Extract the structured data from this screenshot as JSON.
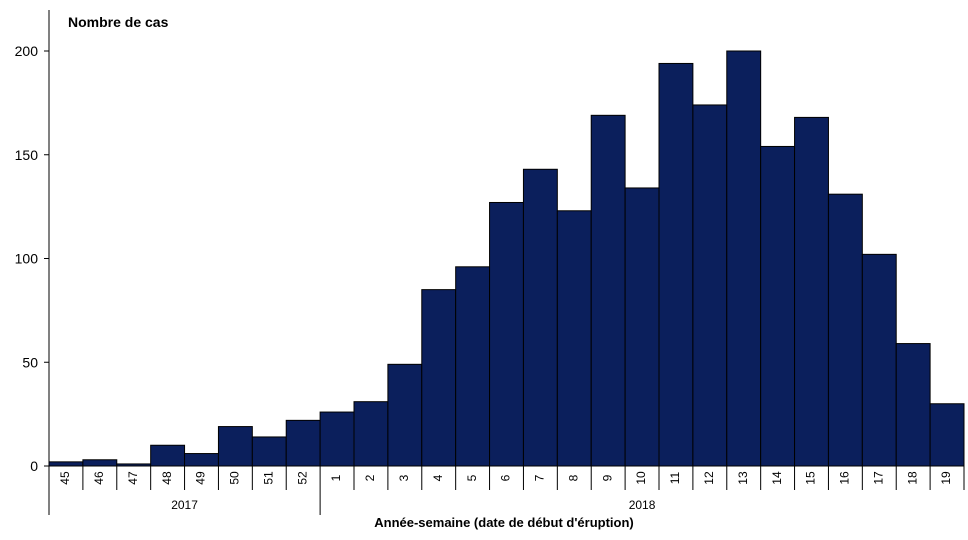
{
  "chart_data": {
    "type": "bar",
    "ylabel": "Nombre de cas",
    "xlabel": "Année-semaine (date de début d'éruption)",
    "ylim": [
      0,
      200
    ],
    "yticks": [
      0,
      50,
      100,
      150,
      200
    ],
    "grid": false,
    "bar_color": "#0b1f5c",
    "groups": [
      {
        "label": "2017",
        "start": 0,
        "end": 8
      },
      {
        "label": "2018",
        "start": 8,
        "end": 27
      }
    ],
    "categories": [
      "45",
      "46",
      "47",
      "48",
      "49",
      "50",
      "51",
      "52",
      "1",
      "2",
      "3",
      "4",
      "5",
      "6",
      "7",
      "8",
      "9",
      "10",
      "11",
      "12",
      "13",
      "14",
      "15",
      "16",
      "17",
      "18",
      "19"
    ],
    "values": [
      2,
      3,
      1,
      10,
      6,
      19,
      14,
      22,
      26,
      31,
      49,
      85,
      96,
      127,
      143,
      123,
      169,
      134,
      194,
      174,
      200,
      154,
      168,
      131,
      102,
      59,
      30
    ]
  }
}
